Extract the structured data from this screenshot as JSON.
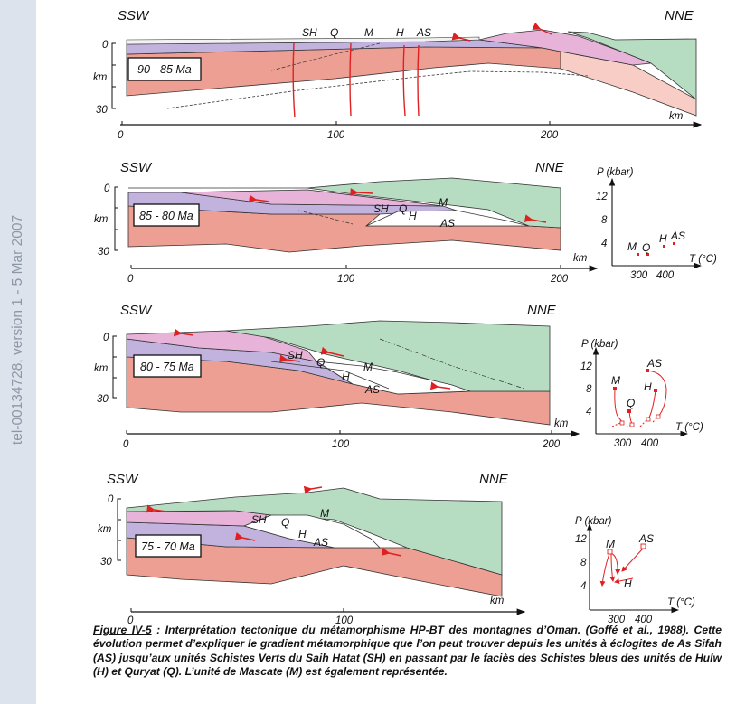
{
  "watermark": "tel-00134728, version 1 - 5 Mar 2007",
  "colors": {
    "sidebar": "#dde3ec",
    "crust": "#ee9f94",
    "crust_light": "#f7cdc6",
    "purple": "#c2b3de",
    "pink": "#e7b3d9",
    "green": "#b6dcc1",
    "fault": "#e02020"
  },
  "panels": [
    {
      "left_dir": "SSW",
      "right_dir": "NNE",
      "age": "90 - 85 Ma",
      "depth_top": "0",
      "depth_unit": "km",
      "depth_bottom": "30",
      "axis_unit": "km",
      "axis_ticks": [
        "0",
        "100",
        "200"
      ],
      "units": [
        "SH",
        "Q",
        "M",
        "H",
        "AS"
      ]
    },
    {
      "left_dir": "SSW",
      "right_dir": "NNE",
      "age": "85 - 80 Ma",
      "depth_top": "0",
      "depth_unit": "km",
      "depth_bottom": "30",
      "axis_unit": "km",
      "axis_ticks": [
        "0",
        "100",
        "200"
      ],
      "units": [
        "SH",
        "Q",
        "M",
        "H",
        "AS"
      ]
    },
    {
      "left_dir": "SSW",
      "right_dir": "NNE",
      "age": "80 - 75 Ma",
      "depth_top": "0",
      "depth_unit": "km",
      "depth_bottom": "30",
      "axis_unit": "km",
      "axis_ticks": [
        "0",
        "100",
        "200"
      ],
      "units": [
        "SH",
        "Q",
        "M",
        "H",
        "AS"
      ]
    },
    {
      "left_dir": "SSW",
      "right_dir": "NNE",
      "age": "75 - 70 Ma",
      "depth_top": "0",
      "depth_unit": "km",
      "depth_bottom": "30",
      "axis_unit": "km",
      "axis_ticks": [
        "0",
        "100"
      ],
      "units": [
        "SH",
        "Q",
        "M",
        "H",
        "AS"
      ]
    }
  ],
  "pt_plots": [
    {
      "ylabel": "P (kbar)",
      "xlabel": "T (°C)",
      "yticks": [
        "12",
        "8",
        "4"
      ],
      "xticks": [
        "300",
        "400"
      ],
      "units": [
        "M",
        "Q",
        "H",
        "AS"
      ]
    },
    {
      "ylabel": "P (kbar)",
      "xlabel": "T (°C)",
      "yticks": [
        "12",
        "8",
        "4"
      ],
      "xticks": [
        "300",
        "400"
      ],
      "units": [
        "M",
        "Q",
        "H",
        "AS"
      ]
    },
    {
      "ylabel": "P (kbar)",
      "xlabel": "T (°C)",
      "yticks": [
        "12",
        "8",
        "4"
      ],
      "xticks": [
        "300",
        "400"
      ],
      "units": [
        "M",
        "H",
        "AS"
      ]
    }
  ],
  "caption": {
    "figure_label": "Figure IV-5",
    "text": " : Interprétation tectonique du métamorphisme HP-BT des montagnes d’Oman. (Goffé et al., 1988). Cette évolution permet d’expliquer le gradient métamorphique que l’on peut trouver depuis les unités à éclogites de As Sifah (AS) jusqu’aux unités Schistes Verts du Saih Hatat (SH) en passant par le faciès des Schistes bleus des unités de Hulw (H) et Quryat (Q). L’unité de Mascate (M) est également représentée."
  }
}
